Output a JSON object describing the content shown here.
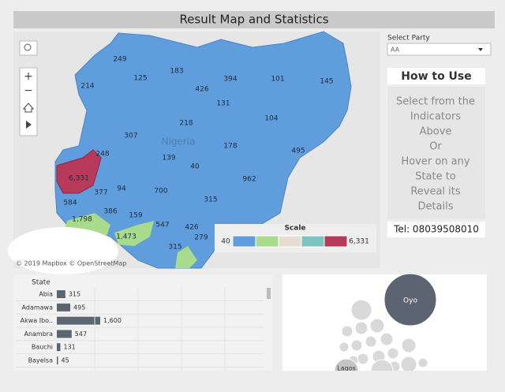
{
  "header": {
    "title": "Result Map and Statistics"
  },
  "map": {
    "labels": [
      "249",
      "183",
      "125",
      "214",
      "426",
      "394",
      "101",
      "145",
      "131",
      "218",
      "104",
      "307",
      "178",
      "495",
      "248",
      "139",
      "40",
      "962",
      "6,331",
      "377",
      "94",
      "700",
      "584",
      "315",
      "386",
      "159",
      "1,798",
      "547",
      "426",
      "279",
      "1,473",
      "315"
    ],
    "country": "Nigeria",
    "attribution": "© 2019 Mapbox © OpenStreetMap",
    "scale": {
      "title": "Scale",
      "min": "40",
      "max": "6,331",
      "colors": [
        "#5f9ddc",
        "#a8dc8c",
        "#e6dcd2",
        "#7cc4c0",
        "#b83a5a"
      ]
    }
  },
  "filter": {
    "label": "Select Party",
    "value": "AA"
  },
  "how_to_use": {
    "title": "How to Use",
    "lines": [
      "Select from the",
      "Indicators",
      "Above",
      "Or",
      "Hover on any",
      "State to",
      "Reveal its",
      "Details"
    ],
    "phone": "Tel: 08039508010"
  },
  "chart_data": {
    "type": "bar",
    "orientation": "horizontal",
    "y_label": "State",
    "categories": [
      "Abia",
      "Adamawa",
      "Akwa Ibo..",
      "Anambra",
      "Bauchi",
      "Bayelsa"
    ],
    "values": [
      315,
      495,
      1600,
      547,
      131,
      45
    ],
    "value_labels": [
      "315",
      "495",
      "1,600",
      "547",
      "131",
      "45"
    ],
    "color": "#5b6670",
    "xlim": [
      0,
      1600
    ]
  },
  "bubble_chart": {
    "labels": [
      "Oyo",
      "Lagos"
    ]
  }
}
